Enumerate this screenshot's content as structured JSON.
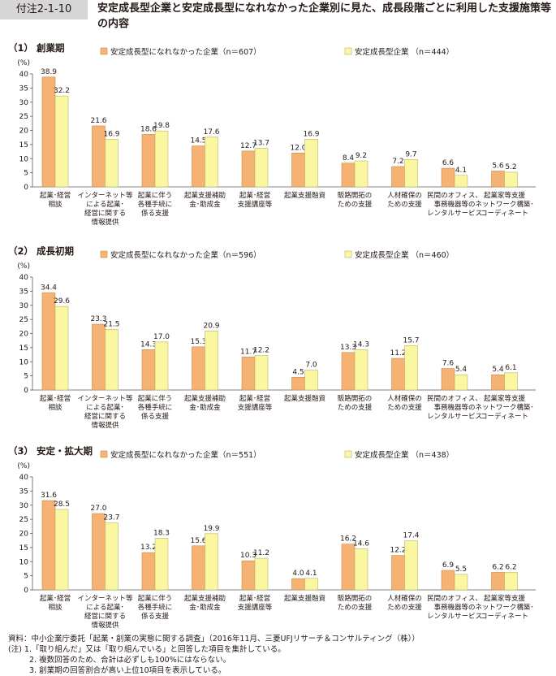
{
  "figure": {
    "number": "付注2-1-10",
    "title": "安定成長型企業と安定成長型になれなかった企業別に見た、成長段階ごとに利用した支援施策等の内容"
  },
  "colors": {
    "orange": "#f6b272",
    "orange_edge": "#c98a48",
    "yellow": "#fbf6a0",
    "yellow_edge": "#b8b272",
    "axis": "#5a5a5a",
    "grid": "#d9d9d9"
  },
  "chart_data": [
    {
      "type": "bar",
      "panel_title": "（1） 創業期",
      "ylabel": "(%)",
      "ylim": [
        0,
        40
      ],
      "yticks": [
        0,
        5,
        10,
        15,
        20,
        25,
        30,
        35,
        40
      ],
      "categories": [
        [
          "起業･経営",
          "相談"
        ],
        [
          "インターネット等",
          "による起業･",
          "経営に関する",
          "情報提供"
        ],
        [
          "起業に伴う",
          "各種手続に",
          "係る支援"
        ],
        [
          "起業支援補助",
          "金･助成金"
        ],
        [
          "起業･経営",
          "支援講座等"
        ],
        [
          "起業支援融資"
        ],
        [
          "販路開拓の",
          "ための支援"
        ],
        [
          "人材確保の",
          "ための支援"
        ],
        [
          "民間のオフィス、",
          "事務機器等の",
          "レンタルサービス"
        ],
        [
          "起業家等支援",
          "ネットワーク構築･",
          "コーディネート"
        ]
      ],
      "series": [
        {
          "name": "安定成長型になれなかった企業（n＝607）",
          "values": [
            38.9,
            21.6,
            18.6,
            14.5,
            12.7,
            12.0,
            8.4,
            7.2,
            6.6,
            5.6
          ]
        },
        {
          "name": "安定成長型企業 （n＝444）",
          "values": [
            32.2,
            16.9,
            19.8,
            17.6,
            13.7,
            16.9,
            9.2,
            9.7,
            4.1,
            5.2
          ]
        }
      ]
    },
    {
      "type": "bar",
      "panel_title": "（2） 成長初期",
      "ylabel": "(%)",
      "ylim": [
        0,
        40
      ],
      "yticks": [
        0,
        5,
        10,
        15,
        20,
        25,
        30,
        35,
        40
      ],
      "categories": [
        [
          "起業･経営",
          "相談"
        ],
        [
          "インターネット等",
          "による起業･",
          "経営に関する",
          "情報提供"
        ],
        [
          "起業に伴う",
          "各種手続に",
          "係る支援"
        ],
        [
          "起業支援補助",
          "金･助成金"
        ],
        [
          "起業･経営",
          "支援講座等"
        ],
        [
          "起業支援融資"
        ],
        [
          "販路開拓の",
          "ための支援"
        ],
        [
          "人材確保の",
          "ための支援"
        ],
        [
          "民間のオフィス、",
          "事務機器等の",
          "レンタルサービス"
        ],
        [
          "起業家等支援",
          "ネットワーク構築･",
          "コーディネート"
        ]
      ],
      "series": [
        {
          "name": "安定成長型になれなかった企業（n＝596）",
          "values": [
            34.4,
            23.3,
            14.3,
            15.3,
            11.7,
            4.5,
            13.3,
            11.2,
            7.6,
            5.4
          ]
        },
        {
          "name": "安定成長型企業 （n＝460）",
          "values": [
            29.6,
            21.5,
            17.0,
            20.9,
            12.2,
            7.0,
            14.3,
            15.7,
            5.4,
            6.1
          ]
        }
      ]
    },
    {
      "type": "bar",
      "panel_title": "（3） 安定・拡大期",
      "ylabel": "(%)",
      "ylim": [
        0,
        40
      ],
      "yticks": [
        0,
        5,
        10,
        15,
        20,
        25,
        30,
        35,
        40
      ],
      "categories": [
        [
          "起業･経営",
          "相談"
        ],
        [
          "インターネット等",
          "による起業･",
          "経営に関する",
          "情報提供"
        ],
        [
          "起業に伴う",
          "各種手続に",
          "係る支援"
        ],
        [
          "起業支援補助",
          "金･助成金"
        ],
        [
          "起業･経営",
          "支援講座等"
        ],
        [
          "起業支援融資"
        ],
        [
          "販路開拓の",
          "ための支援"
        ],
        [
          "人材確保の",
          "ための支援"
        ],
        [
          "民間のオフィス、",
          "事務機器等の",
          "レンタルサービス"
        ],
        [
          "起業家等支援",
          "ネットワーク構築･",
          "コーディネート"
        ]
      ],
      "series": [
        {
          "name": "安定成長型になれなかった企業（n＝551）",
          "values": [
            31.6,
            27.0,
            13.2,
            15.6,
            10.3,
            4.0,
            16.2,
            12.2,
            6.9,
            6.2
          ]
        },
        {
          "name": "安定成長型企業 （n＝438）",
          "values": [
            28.5,
            23.7,
            18.3,
            19.9,
            11.2,
            4.1,
            14.6,
            17.4,
            5.5,
            6.2
          ]
        }
      ]
    }
  ],
  "notes": {
    "source": "資料：中小企業庁委託「起業・創業の実態に関する調査」（2016年11月、三菱UFJリサーチ＆コンサルティング（株））",
    "note1": "(注) 1.「取り組んだ」又は「取り組んでいる」と回答した項目を集計している。",
    "note2": "2. 複数回答のため、合計は必ずしも100%にはならない。",
    "note3": "3. 創業期の回答割合が高い上位10項目を表示している。"
  }
}
